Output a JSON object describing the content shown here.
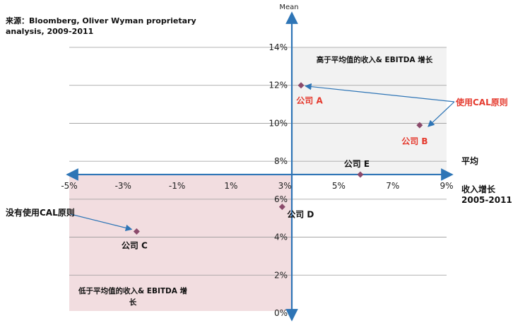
{
  "source_note": "来源：Bloomberg, Oliver Wyman proprietary analysis, 2009-2011",
  "chart_data": {
    "type": "scatter",
    "title": "",
    "ylabel": "Mean",
    "xlabel": "收入增长 2005-2011",
    "mean_label": "平均",
    "x_ticks": [
      "-5%",
      "-3%",
      "-1%",
      "1%",
      "3%",
      "5%",
      "7%",
      "9%"
    ],
    "y_ticks": [
      "0%",
      "2%",
      "4%",
      "6%",
      "8%",
      "10%",
      "12%",
      "14%"
    ],
    "xlim": [
      -5,
      9
    ],
    "ylim": [
      0,
      14
    ],
    "mean_y": 7.3,
    "grid": true,
    "points": [
      {
        "name": "公司 A",
        "x": 3.6,
        "y": 12.0,
        "color": "#e53a2e"
      },
      {
        "name": "公司 B",
        "x": 8.0,
        "y": 9.9,
        "color": "#e53a2e"
      },
      {
        "name": "公司 C",
        "x": -2.5,
        "y": 4.3,
        "color": "#111111"
      },
      {
        "name": "公司 D",
        "x": 2.9,
        "y": 5.6,
        "color": "#111111"
      },
      {
        "name": "公司 E",
        "x": 5.8,
        "y": 7.3,
        "color": "#111111"
      }
    ],
    "regions": [
      {
        "label": "高于平均值的收入& EBITDA 增长",
        "color": "#f2f2f2"
      },
      {
        "label": "低于平均值的收入& EBITDA 增长",
        "color": "#f2dde0"
      }
    ],
    "annotations": [
      {
        "text": "使用CAL原则",
        "color": "#e53a2e"
      },
      {
        "text": "没有使用CAL原则",
        "color": "#111111"
      }
    ],
    "colors": {
      "axis": "#2e75b6",
      "marker": "#8b4a6b",
      "red_label": "#e53a2e",
      "grid": "#9a9a9a"
    }
  }
}
